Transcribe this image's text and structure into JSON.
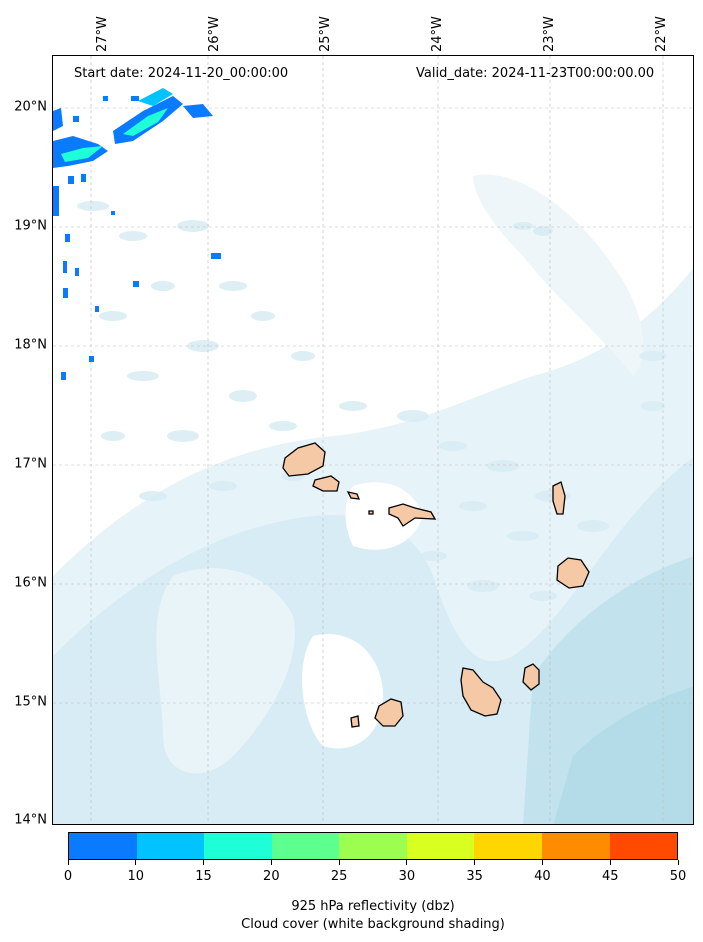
{
  "header": {
    "start_date": "Start date: 2024-11-20_00:00:00",
    "valid_date": "Valid_date: 2024-11-23T00:00:00.00"
  },
  "lat_ticks": [
    "20°N",
    "19°N",
    "18°N",
    "17°N",
    "16°N",
    "15°N",
    "14°N"
  ],
  "lon_ticks": [
    "27°W",
    "26°W",
    "25°W",
    "24°W",
    "23°W",
    "22°W"
  ],
  "colorbar": {
    "ticks": [
      "0",
      "10",
      "15",
      "20",
      "25",
      "30",
      "35",
      "40",
      "45",
      "50"
    ],
    "colors": [
      "#0a7bff",
      "#00c3ff",
      "#1effd8",
      "#5dff8e",
      "#9cff4f",
      "#d8ff20",
      "#ffd600",
      "#ff8c00",
      "#ff4a00"
    ],
    "label": "925 hPa reflectivity (dbz)",
    "sublabel": "Cloud cover (white background shading)"
  },
  "colors": {
    "cloud_light": "#e6f3f8",
    "cloud_mid": "#cfe8f1",
    "cloud_dense": "#b6dde9",
    "land": "#f6c9a6",
    "land_outline": "#000000"
  }
}
